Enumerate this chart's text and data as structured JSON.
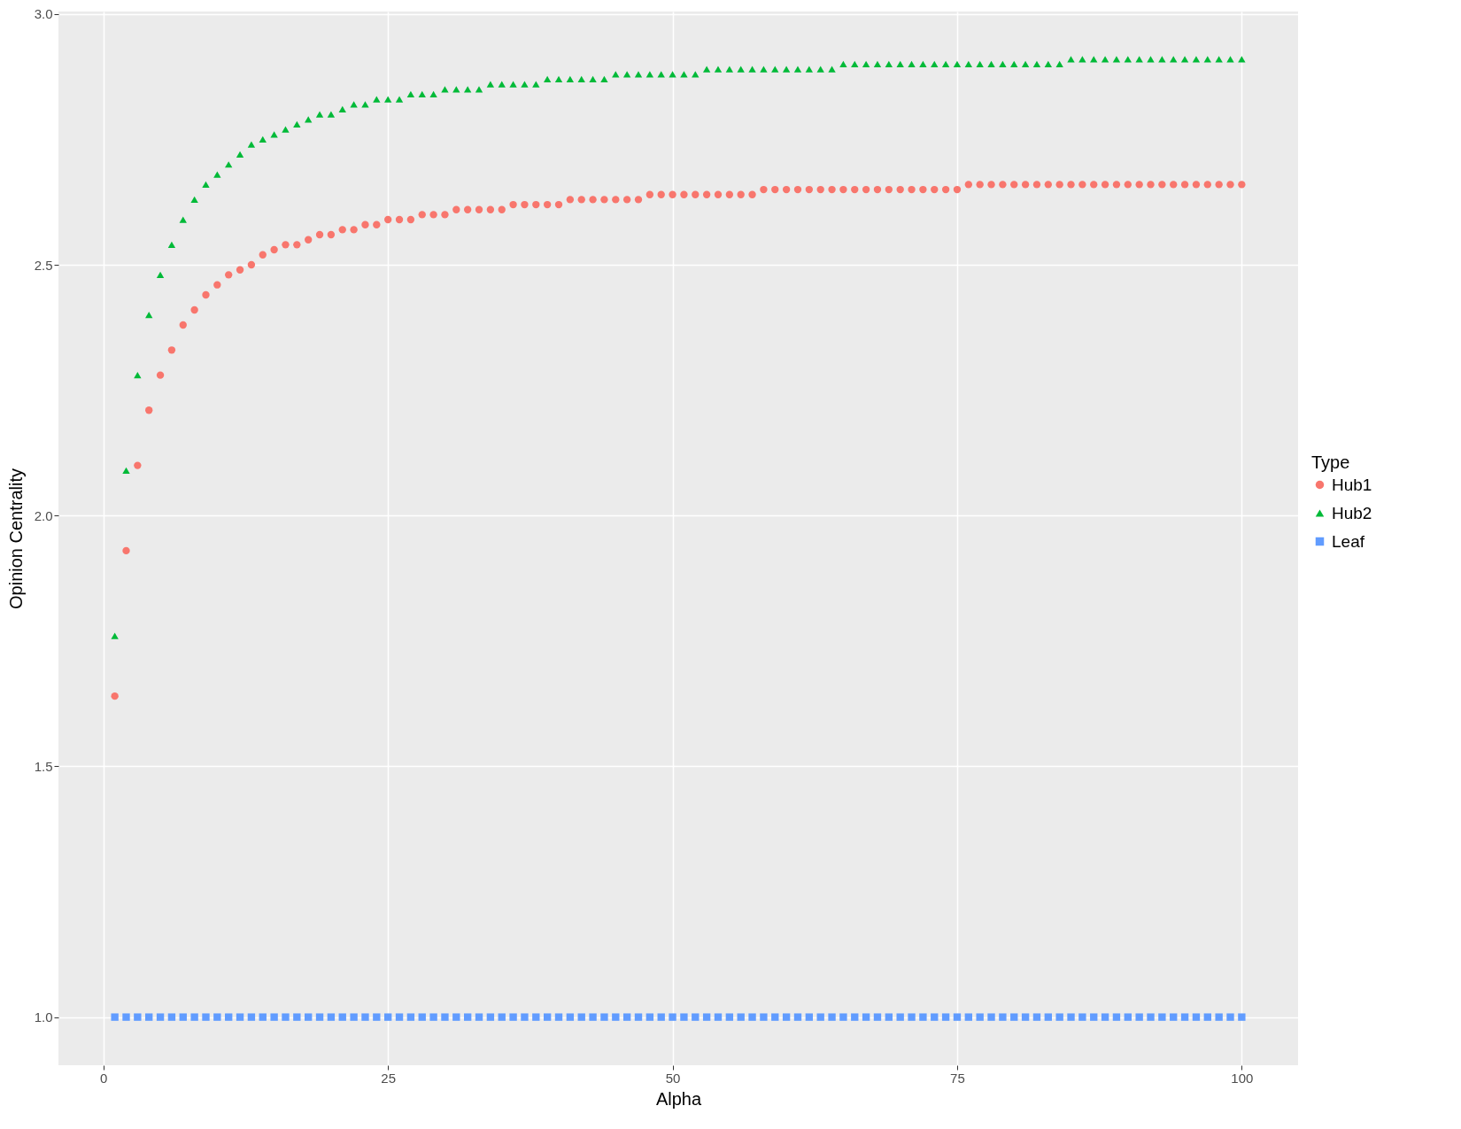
{
  "chart_data": {
    "type": "scatter",
    "xlabel": "Alpha",
    "ylabel": "Opinion Centrality",
    "legend_title": "Type",
    "x": [
      1,
      2,
      3,
      4,
      5,
      6,
      7,
      8,
      9,
      10,
      11,
      12,
      13,
      14,
      15,
      16,
      17,
      18,
      19,
      20,
      21,
      22,
      23,
      24,
      25,
      26,
      27,
      28,
      29,
      30,
      31,
      32,
      33,
      34,
      35,
      36,
      37,
      38,
      39,
      40,
      41,
      42,
      43,
      44,
      45,
      46,
      47,
      48,
      49,
      50,
      51,
      52,
      53,
      54,
      55,
      56,
      57,
      58,
      59,
      60,
      61,
      62,
      63,
      64,
      65,
      66,
      67,
      68,
      69,
      70,
      71,
      72,
      73,
      74,
      75,
      76,
      77,
      78,
      79,
      80,
      81,
      82,
      83,
      84,
      85,
      86,
      87,
      88,
      89,
      90,
      91,
      92,
      93,
      94,
      95,
      96,
      97,
      98,
      99,
      100
    ],
    "series": [
      {
        "name": "Hub1",
        "color": "#f8766d",
        "marker": "circle",
        "values": [
          1.64,
          1.93,
          2.1,
          2.21,
          2.28,
          2.33,
          2.38,
          2.41,
          2.44,
          2.46,
          2.48,
          2.49,
          2.5,
          2.52,
          2.53,
          2.54,
          2.54,
          2.55,
          2.56,
          2.56,
          2.57,
          2.57,
          2.58,
          2.58,
          2.59,
          2.59,
          2.59,
          2.6,
          2.6,
          2.6,
          2.61,
          2.61,
          2.61,
          2.61,
          2.61,
          2.62,
          2.62,
          2.62,
          2.62,
          2.62,
          2.63,
          2.63,
          2.63,
          2.63,
          2.63,
          2.63,
          2.63,
          2.64,
          2.64,
          2.64,
          2.64,
          2.64,
          2.64,
          2.64,
          2.64,
          2.64,
          2.64,
          2.65,
          2.65,
          2.65,
          2.65,
          2.65,
          2.65,
          2.65,
          2.65,
          2.65,
          2.65,
          2.65,
          2.65,
          2.65,
          2.65,
          2.65,
          2.65,
          2.65,
          2.65,
          2.66,
          2.66,
          2.66,
          2.66,
          2.66,
          2.66,
          2.66,
          2.66,
          2.66,
          2.66,
          2.66,
          2.66,
          2.66,
          2.66,
          2.66,
          2.66,
          2.66,
          2.66,
          2.66,
          2.66,
          2.66,
          2.66,
          2.66,
          2.66,
          2.66
        ]
      },
      {
        "name": "Hub2",
        "color": "#00ba38",
        "marker": "triangle",
        "values": [
          1.76,
          2.09,
          2.28,
          2.4,
          2.48,
          2.54,
          2.59,
          2.63,
          2.66,
          2.68,
          2.7,
          2.72,
          2.74,
          2.75,
          2.76,
          2.77,
          2.78,
          2.79,
          2.8,
          2.8,
          2.81,
          2.82,
          2.82,
          2.83,
          2.83,
          2.83,
          2.84,
          2.84,
          2.84,
          2.85,
          2.85,
          2.85,
          2.85,
          2.86,
          2.86,
          2.86,
          2.86,
          2.86,
          2.87,
          2.87,
          2.87,
          2.87,
          2.87,
          2.87,
          2.88,
          2.88,
          2.88,
          2.88,
          2.88,
          2.88,
          2.88,
          2.88,
          2.89,
          2.89,
          2.89,
          2.89,
          2.89,
          2.89,
          2.89,
          2.89,
          2.89,
          2.89,
          2.89,
          2.89,
          2.9,
          2.9,
          2.9,
          2.9,
          2.9,
          2.9,
          2.9,
          2.9,
          2.9,
          2.9,
          2.9,
          2.9,
          2.9,
          2.9,
          2.9,
          2.9,
          2.9,
          2.9,
          2.9,
          2.9,
          2.91,
          2.91,
          2.91,
          2.91,
          2.91,
          2.91,
          2.91,
          2.91,
          2.91,
          2.91,
          2.91,
          2.91,
          2.91,
          2.91,
          2.91,
          2.91
        ]
      },
      {
        "name": "Leaf",
        "color": "#619cff",
        "marker": "square",
        "values": [
          1,
          1,
          1,
          1,
          1,
          1,
          1,
          1,
          1,
          1,
          1,
          1,
          1,
          1,
          1,
          1,
          1,
          1,
          1,
          1,
          1,
          1,
          1,
          1,
          1,
          1,
          1,
          1,
          1,
          1,
          1,
          1,
          1,
          1,
          1,
          1,
          1,
          1,
          1,
          1,
          1,
          1,
          1,
          1,
          1,
          1,
          1,
          1,
          1,
          1,
          1,
          1,
          1,
          1,
          1,
          1,
          1,
          1,
          1,
          1,
          1,
          1,
          1,
          1,
          1,
          1,
          1,
          1,
          1,
          1,
          1,
          1,
          1,
          1,
          1,
          1,
          1,
          1,
          1,
          1,
          1,
          1,
          1,
          1,
          1,
          1,
          1,
          1,
          1,
          1,
          1,
          1,
          1,
          1,
          1,
          1,
          1,
          1,
          1,
          1
        ]
      }
    ],
    "xlim": [
      -3.95,
      104.95
    ],
    "xticks": [
      0,
      25,
      50,
      75,
      100
    ],
    "ylim": [
      0.904,
      3.005
    ],
    "yticks": [
      {
        "value": 1,
        "label": "1.0"
      },
      1.5,
      {
        "value": 2,
        "label": "2.0"
      },
      2.5,
      {
        "value": 3,
        "label": "3.0"
      }
    ],
    "grid": true,
    "legend": "right"
  }
}
